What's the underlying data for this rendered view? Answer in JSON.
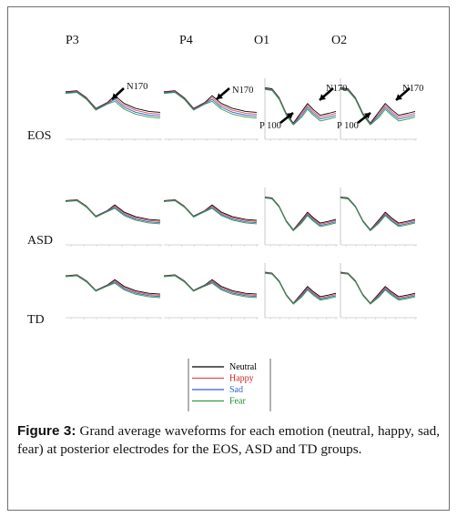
{
  "figure": {
    "electrodes": [
      "P3",
      "P4",
      "O1",
      "O2"
    ],
    "groups": [
      "EOS",
      "ASD",
      "TD"
    ],
    "annotations": {
      "n170": "N170",
      "p100": "P 100"
    },
    "legend": [
      {
        "label": "Neutral",
        "color": "#000000",
        "text_color": "#000000"
      },
      {
        "label": "Happy",
        "color": "#e8474f",
        "text_color": "#cc1f1f"
      },
      {
        "label": "Sad",
        "color": "#2f5fd6",
        "text_color": "#2f5fd6"
      },
      {
        "label": "Fear",
        "color": "#2e9e3e",
        "text_color": "#1e8a2e"
      }
    ]
  },
  "chart_data": {
    "type": "line",
    "panels": "3 rows (EOS, ASD, TD) x 4 columns (P3, P4, O1, O2) of ERP waveforms; each panel shows Neutral, Happy, Sad, Fear series",
    "series": [
      {
        "name": "Neutral"
      },
      {
        "name": "Happy"
      },
      {
        "name": "Sad"
      },
      {
        "name": "Fear"
      }
    ],
    "xlabel": "",
    "ylabel": ""
  },
  "caption": {
    "label": "Figure 3:",
    "text": " Grand average waveforms for each emotion (neutral, happy, sad, fear) at posterior electrodes for the EOS, ASD and TD groups."
  }
}
